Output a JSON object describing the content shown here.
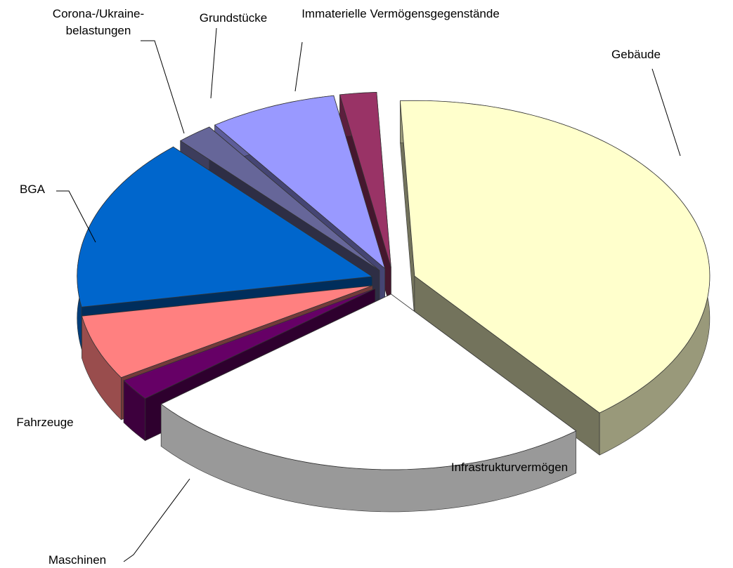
{
  "chart_data": {
    "type": "pie3d",
    "categories": [
      "Immaterielle Vermögensgegenstände",
      "Gebäude",
      "Infrastrukturvermögen",
      "Maschinen",
      "Fahrzeuge",
      "BGA",
      "Corona-/Ukraine-belastungen",
      "Grundstücke"
    ],
    "values": [
      2,
      40,
      25,
      2,
      6,
      16,
      2,
      7
    ],
    "colors": [
      "#993366",
      "#ffffcc",
      "#ffffff",
      "#660066",
      "#ff8080",
      "#0066cc",
      "#666699",
      "#9999ff"
    ]
  }
}
